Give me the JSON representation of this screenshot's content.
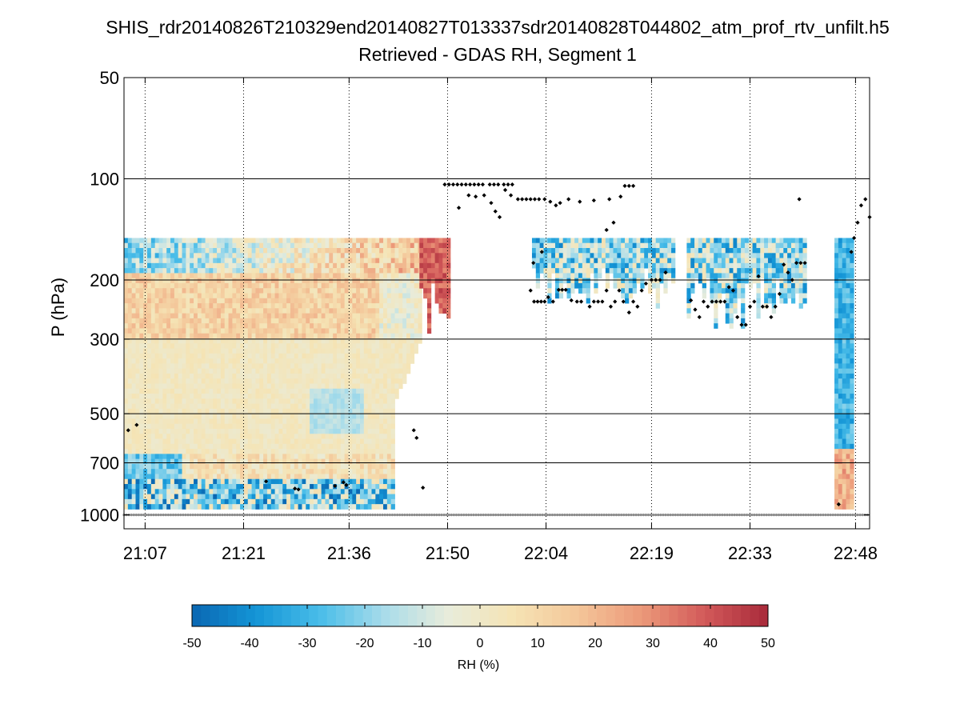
{
  "chart_data": {
    "type": "heatmap",
    "title": "SHIS_rdr20140826T210329end20140827T013337sdr20140828T044802_atm_prof_rtv_unfilt.h5",
    "subtitle": "Retrieved - GDAS RH, Segment 1",
    "xlabel": "",
    "ylabel": "P (hPa)",
    "x_ticks": [
      "21:07",
      "21:21",
      "21:36",
      "21:50",
      "22:04",
      "22:19",
      "22:33",
      "22:48"
    ],
    "x_range_minutes": [
      1264,
      1370
    ],
    "y_ticks": [
      50,
      100,
      200,
      300,
      500,
      700,
      1000
    ],
    "ylim": [
      50,
      1100
    ],
    "y_scale": "log",
    "grid": true,
    "colorbar": {
      "label": "RH (%)",
      "range": [
        -50,
        50
      ],
      "ticks": [
        -50,
        -40,
        -30,
        -20,
        -10,
        0,
        10,
        20,
        30,
        40,
        50
      ],
      "location": "bottom"
    },
    "colormap": [
      "#0a67b2",
      "#1495d6",
      "#49bde9",
      "#a8dcea",
      "#e8ecdb",
      "#f5e4b5",
      "#f4c79a",
      "#ec9a7a",
      "#d35a5a",
      "#a82a3a"
    ],
    "field_regions": [
      {
        "name": "continuous-retrieval",
        "x_from": 1264,
        "x_to": 1306,
        "p_top": 150,
        "p_bottom": 980
      },
      {
        "name": "cirrus-segment-1",
        "x_from": 1306,
        "x_to": 1310,
        "p_top": 150,
        "p_bottom": 290
      },
      {
        "name": "cirrus-segment-2",
        "x_from": 1322,
        "x_to": 1342,
        "p_top": 150,
        "p_bottom": 235
      },
      {
        "name": "cirrus-segment-3",
        "x_from": 1344,
        "x_to": 1361,
        "p_top": 150,
        "p_bottom": 275
      },
      {
        "name": "descent-column",
        "x_from": 1365,
        "x_to": 1367.5,
        "p_top": 150,
        "p_bottom": 980
      }
    ],
    "dots": [
      {
        "x": 1309.6,
        "p": 104
      },
      {
        "x": 1310.2,
        "p": 104
      },
      {
        "x": 1310.8,
        "p": 104
      },
      {
        "x": 1311.4,
        "p": 104
      },
      {
        "x": 1312.0,
        "p": 104
      },
      {
        "x": 1312.6,
        "p": 104
      },
      {
        "x": 1313.2,
        "p": 104
      },
      {
        "x": 1313.8,
        "p": 104
      },
      {
        "x": 1314.4,
        "p": 104
      },
      {
        "x": 1315.0,
        "p": 104
      },
      {
        "x": 1316.0,
        "p": 104
      },
      {
        "x": 1316.6,
        "p": 104
      },
      {
        "x": 1317.2,
        "p": 104
      },
      {
        "x": 1318.0,
        "p": 104
      },
      {
        "x": 1318.6,
        "p": 104
      },
      {
        "x": 1319.2,
        "p": 104
      },
      {
        "x": 1311.6,
        "p": 122
      },
      {
        "x": 1313.0,
        "p": 112
      },
      {
        "x": 1314.0,
        "p": 113
      },
      {
        "x": 1315.2,
        "p": 112
      },
      {
        "x": 1316.2,
        "p": 118
      },
      {
        "x": 1316.8,
        "p": 125
      },
      {
        "x": 1317.4,
        "p": 130
      },
      {
        "x": 1318.2,
        "p": 108
      },
      {
        "x": 1319.0,
        "p": 112
      },
      {
        "x": 1320.0,
        "p": 115
      },
      {
        "x": 1320.6,
        "p": 115
      },
      {
        "x": 1321.2,
        "p": 115
      },
      {
        "x": 1321.8,
        "p": 115
      },
      {
        "x": 1322.4,
        "p": 115
      },
      {
        "x": 1323.0,
        "p": 115
      },
      {
        "x": 1323.8,
        "p": 115
      },
      {
        "x": 1324.6,
        "p": 117
      },
      {
        "x": 1325.4,
        "p": 120
      },
      {
        "x": 1326.0,
        "p": 118
      },
      {
        "x": 1327.2,
        "p": 115
      },
      {
        "x": 1328.8,
        "p": 117
      },
      {
        "x": 1330.8,
        "p": 116
      },
      {
        "x": 1333.0,
        "p": 115
      },
      {
        "x": 1323.4,
        "p": 165
      },
      {
        "x": 1335.2,
        "p": 105
      },
      {
        "x": 1335.8,
        "p": 105
      },
      {
        "x": 1336.4,
        "p": 105
      },
      {
        "x": 1334.6,
        "p": 113
      },
      {
        "x": 1332.6,
        "p": 142
      },
      {
        "x": 1333.6,
        "p": 135
      },
      {
        "x": 1264.6,
        "p": 560
      },
      {
        "x": 1265.8,
        "p": 540
      },
      {
        "x": 1305.2,
        "p": 560
      },
      {
        "x": 1305.6,
        "p": 590
      },
      {
        "x": 1306.5,
        "p": 830
      },
      {
        "x": 1294.0,
        "p": 820
      },
      {
        "x": 1295.2,
        "p": 800
      },
      {
        "x": 1295.6,
        "p": 815
      },
      {
        "x": 1284.2,
        "p": 795
      },
      {
        "x": 1288.3,
        "p": 835
      },
      {
        "x": 1288.8,
        "p": 840
      },
      {
        "x": 1321.8,
        "p": 215
      },
      {
        "x": 1322.3,
        "p": 232
      },
      {
        "x": 1322.8,
        "p": 232
      },
      {
        "x": 1323.3,
        "p": 232
      },
      {
        "x": 1323.8,
        "p": 232
      },
      {
        "x": 1324.3,
        "p": 225
      },
      {
        "x": 1325.0,
        "p": 232
      },
      {
        "x": 1325.8,
        "p": 214
      },
      {
        "x": 1326.3,
        "p": 214
      },
      {
        "x": 1326.8,
        "p": 214
      },
      {
        "x": 1327.6,
        "p": 230
      },
      {
        "x": 1328.4,
        "p": 232
      },
      {
        "x": 1329.0,
        "p": 232
      },
      {
        "x": 1330.2,
        "p": 240
      },
      {
        "x": 1330.8,
        "p": 232
      },
      {
        "x": 1331.4,
        "p": 232
      },
      {
        "x": 1332.0,
        "p": 232
      },
      {
        "x": 1332.6,
        "p": 215
      },
      {
        "x": 1333.2,
        "p": 240
      },
      {
        "x": 1333.8,
        "p": 232
      },
      {
        "x": 1334.4,
        "p": 215
      },
      {
        "x": 1335.0,
        "p": 232
      },
      {
        "x": 1335.8,
        "p": 250
      },
      {
        "x": 1336.4,
        "p": 232
      },
      {
        "x": 1337.0,
        "p": 240
      },
      {
        "x": 1337.6,
        "p": 215
      },
      {
        "x": 1338.2,
        "p": 205
      },
      {
        "x": 1339.0,
        "p": 200
      },
      {
        "x": 1339.6,
        "p": 200
      },
      {
        "x": 1340.2,
        "p": 200
      },
      {
        "x": 1341.0,
        "p": 190
      },
      {
        "x": 1344.6,
        "p": 230
      },
      {
        "x": 1345.2,
        "p": 245
      },
      {
        "x": 1345.8,
        "p": 258
      },
      {
        "x": 1346.4,
        "p": 232
      },
      {
        "x": 1347.0,
        "p": 240
      },
      {
        "x": 1347.6,
        "p": 232
      },
      {
        "x": 1348.2,
        "p": 232
      },
      {
        "x": 1348.8,
        "p": 232
      },
      {
        "x": 1349.4,
        "p": 232
      },
      {
        "x": 1350.0,
        "p": 210
      },
      {
        "x": 1350.6,
        "p": 215
      },
      {
        "x": 1351.2,
        "p": 258
      },
      {
        "x": 1351.8,
        "p": 272
      },
      {
        "x": 1352.4,
        "p": 272
      },
      {
        "x": 1353.0,
        "p": 240
      },
      {
        "x": 1353.6,
        "p": 232
      },
      {
        "x": 1354.2,
        "p": 195
      },
      {
        "x": 1354.8,
        "p": 240
      },
      {
        "x": 1355.4,
        "p": 240
      },
      {
        "x": 1356.0,
        "p": 258
      },
      {
        "x": 1356.6,
        "p": 240
      },
      {
        "x": 1357.2,
        "p": 220
      },
      {
        "x": 1357.8,
        "p": 180
      },
      {
        "x": 1358.4,
        "p": 190
      },
      {
        "x": 1359.0,
        "p": 200
      },
      {
        "x": 1359.6,
        "p": 178
      },
      {
        "x": 1360.2,
        "p": 178
      },
      {
        "x": 1360.8,
        "p": 178
      },
      {
        "x": 1322.2,
        "p": 178
      },
      {
        "x": 1360.0,
        "p": 115
      },
      {
        "x": 1365.6,
        "p": 930
      },
      {
        "x": 1367.4,
        "p": 165
      },
      {
        "x": 1367.8,
        "p": 150
      },
      {
        "x": 1368.3,
        "p": 135
      },
      {
        "x": 1368.8,
        "p": 120
      },
      {
        "x": 1369.4,
        "p": 115
      },
      {
        "x": 1370.0,
        "p": 130
      }
    ],
    "bottom_marker_row": {
      "p": 1000,
      "x_from": 1264,
      "x_to": 1370
    }
  }
}
